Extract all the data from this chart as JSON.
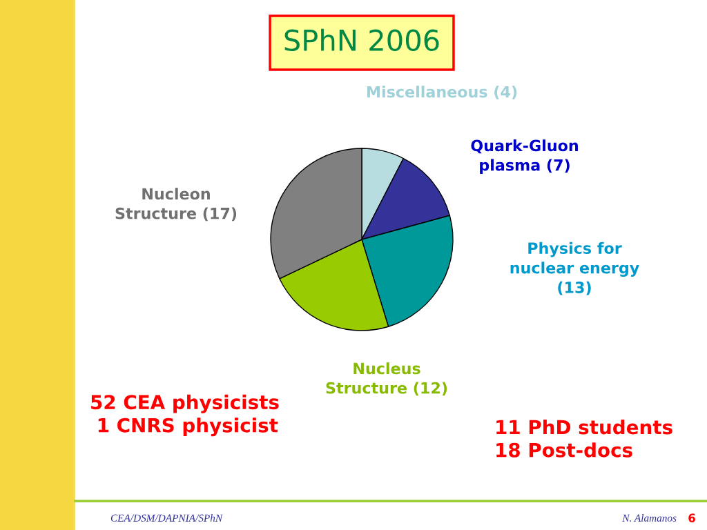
{
  "chart_data": {
    "type": "pie",
    "title": "SPhN 2006",
    "categories": [
      "Miscellaneous (4)",
      "Quark-Gluon\nplasma (7)",
      "Physics for\nnuclear energy\n(13)",
      "Nucleus\nStructure (12)",
      "Nucleon\nStructure (17)"
    ],
    "values": [
      4,
      7,
      13,
      12,
      17
    ],
    "colors": [
      "#b7dde0",
      "#333399",
      "#009999",
      "#99cc00",
      "#808080"
    ],
    "annotations": [
      "52 CEA physicists\n 1 CNRS physicist",
      "11 PhD students\n18 Post-docs",
      "CEA/DSM/DAPNIA/SPhN",
      "N. Alamanos",
      "6"
    ]
  }
}
